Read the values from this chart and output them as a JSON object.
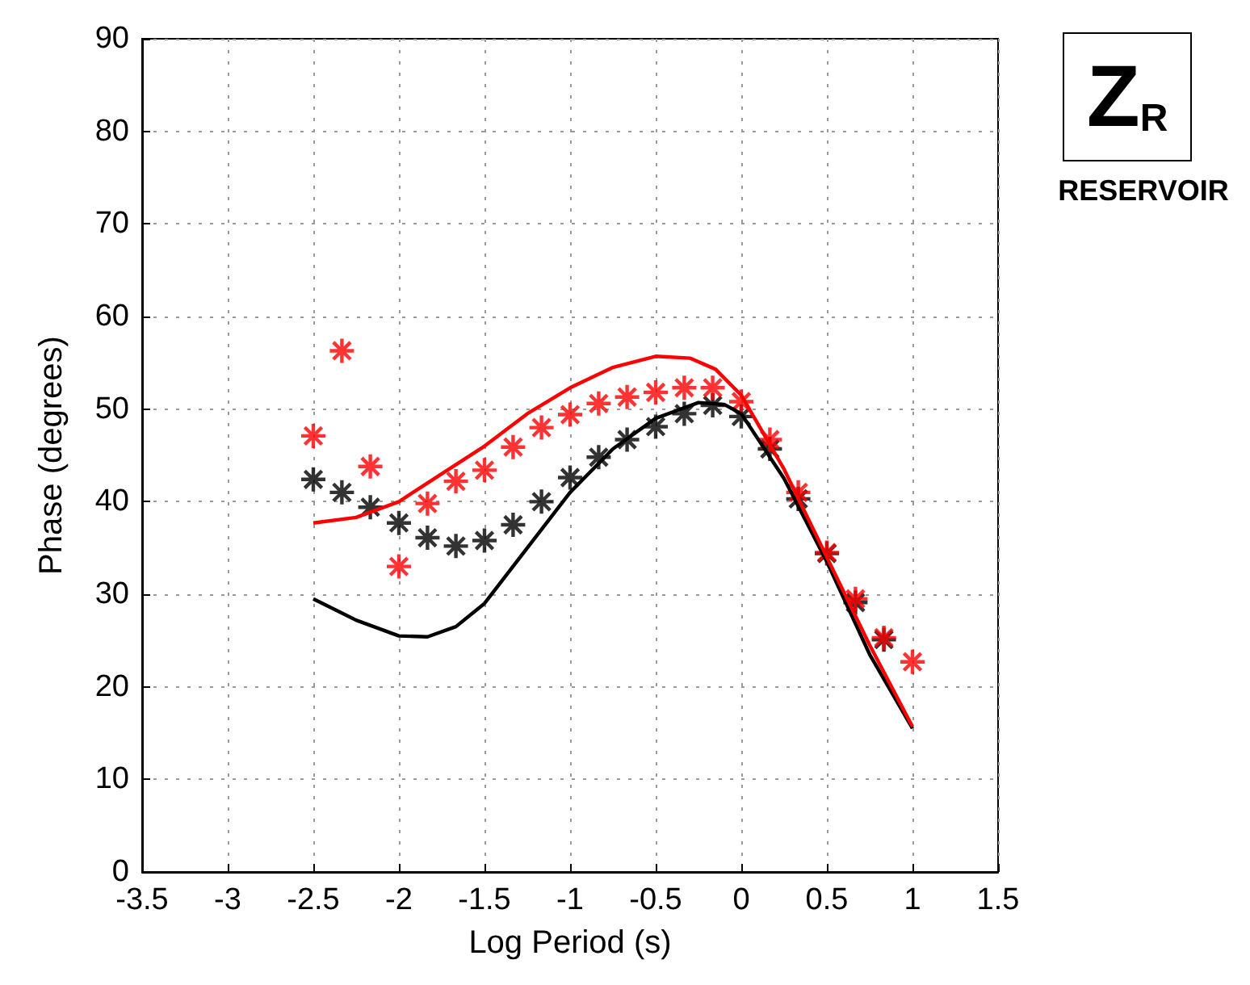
{
  "chart_data": {
    "type": "line",
    "xlabel": "Log Period (s)",
    "ylabel": "Phase (degrees)",
    "annotations": [
      "Z$_{R}$",
      "RESERVOIR"
    ],
    "xlim": [
      -3.5,
      1.5
    ],
    "xticks": [
      -3.5,
      -3,
      -2.5,
      -2,
      -1.5,
      -1,
      -0.5,
      0,
      0.5,
      1,
      1.5
    ],
    "ylim": [
      0,
      90
    ],
    "yticks": [
      0,
      10,
      20,
      30,
      40,
      50,
      60,
      70,
      80,
      90
    ],
    "grid": true,
    "series": [
      {
        "type": "scatter",
        "marker": "cross",
        "color": "#ff0000",
        "x": [
          -2.5,
          -2.333,
          -2.167,
          -2.0,
          -1.833,
          -1.667,
          -1.5,
          -1.333,
          -1.167,
          -1.0,
          -0.833,
          -0.667,
          -0.5,
          -0.333,
          -0.167,
          0,
          0.167,
          0.333,
          0.5,
          0.667,
          0.833,
          1.0
        ],
        "values": [
          47.1,
          56.3,
          43.8,
          33.0,
          39.8,
          42.2,
          43.4,
          45.9,
          48.0,
          49.4,
          50.6,
          51.3,
          51.8,
          52.3,
          52.3,
          50.8,
          46.7,
          41.0,
          34.5,
          29.5,
          25.3,
          22.7
        ]
      },
      {
        "type": "scatter",
        "marker": "cross",
        "color": "#000000",
        "x": [
          -2.5,
          -2.333,
          -2.167,
          -2.0,
          -1.833,
          -1.667,
          -1.5,
          -1.333,
          -1.167,
          -1.0,
          -0.833,
          -0.667,
          -0.5,
          -0.333,
          -0.167,
          0,
          0.167,
          0.333,
          0.5,
          0.667,
          0.833
        ],
        "values": [
          42.4,
          41.0,
          39.4,
          37.7,
          36.1,
          35.2,
          35.8,
          37.5,
          40.0,
          42.6,
          44.8,
          46.7,
          48.1,
          49.5,
          50.4,
          49.2,
          45.7,
          40.3,
          34.4,
          29.1,
          25.1
        ]
      },
      {
        "color": "#ff0000",
        "x": [
          -2.5,
          -2.25,
          -2.0,
          -1.75,
          -1.5,
          -1.25,
          -1.0,
          -0.75,
          -0.5,
          -0.3,
          -0.15,
          0,
          0.25,
          0.5,
          0.75,
          1.0
        ],
        "values": [
          37.7,
          38.3,
          40.0,
          43.0,
          46.0,
          49.5,
          52.3,
          54.5,
          55.7,
          55.5,
          54.3,
          51.5,
          43.5,
          34.0,
          24.5,
          15.7
        ]
      },
      {
        "color": "#000000",
        "x": [
          -2.5,
          -2.25,
          -2.0,
          -1.833,
          -1.667,
          -1.5,
          -1.25,
          -1.0,
          -0.75,
          -0.5,
          -0.25,
          -0.1,
          0,
          0.25,
          0.5,
          0.75,
          1.0
        ],
        "values": [
          29.5,
          27.2,
          25.5,
          25.4,
          26.5,
          29.0,
          35.0,
          41.0,
          45.7,
          49.0,
          50.7,
          50.5,
          49.5,
          42.5,
          33.5,
          23.5,
          15.5
        ]
      }
    ]
  }
}
